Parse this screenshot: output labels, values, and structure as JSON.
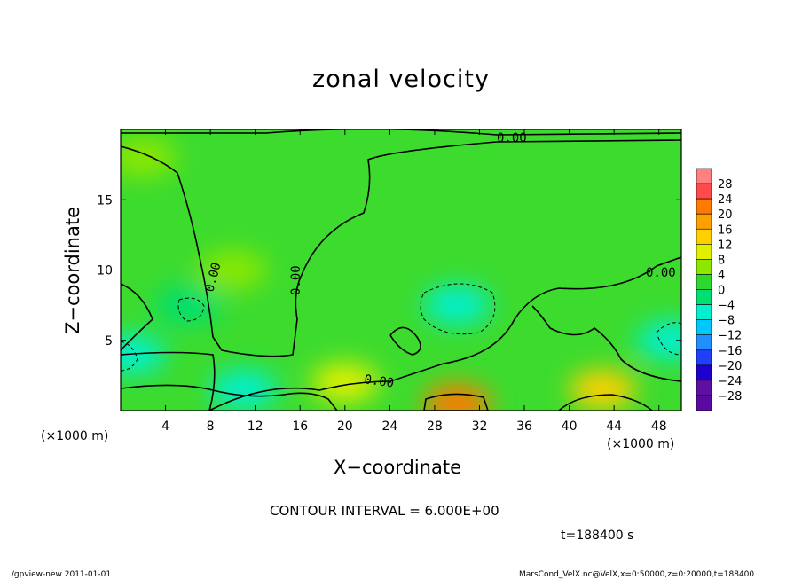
{
  "chart_data": {
    "type": "heatmap",
    "title": "zonal velocity",
    "xlabel": "X−coordinate",
    "ylabel": "Z−coordinate",
    "x_unit": "(×1000 m)",
    "xlim": [
      0,
      50
    ],
    "ylim": [
      0,
      20
    ],
    "x_ticks": [
      "4",
      "8",
      "12",
      "16",
      "20",
      "24",
      "28",
      "32",
      "36",
      "40",
      "44",
      "48"
    ],
    "y_ticks": [
      "5",
      "10",
      "15"
    ],
    "colorbar": {
      "levels": [
        "28",
        "24",
        "20",
        "16",
        "12",
        "8",
        "4",
        "0",
        "−4",
        "−8",
        "−12",
        "−16",
        "−20",
        "−24",
        "−28"
      ],
      "colors": [
        "#ff8080",
        "#ff4a4a",
        "#ff7a00",
        "#ffa000",
        "#ffd000",
        "#e0f000",
        "#8ce800",
        "#2fd82f",
        "#00e070",
        "#00f0d0",
        "#00c8ff",
        "#2090ff",
        "#2040ff",
        "#2000d0",
        "#6010a0"
      ]
    },
    "contour_labels": [
      "0.00",
      "0.00",
      "0.00",
      "0.00",
      "0.00"
    ],
    "contour_interval": "CONTOUR INTERVAL = 6.000E+00",
    "time": "t=188400 s",
    "field_samples": [
      {
        "x": 2,
        "z": 18,
        "u": 2
      },
      {
        "x": 10,
        "z": 10,
        "u": 5
      },
      {
        "x": 30,
        "z": 7.5,
        "u": -9
      },
      {
        "x": 6,
        "z": 7.5,
        "u": -6
      },
      {
        "x": 49,
        "z": 5,
        "u": -9
      },
      {
        "x": 1,
        "z": 4,
        "u": -10
      },
      {
        "x": 11,
        "z": 1.5,
        "u": -9
      },
      {
        "x": 30,
        "z": 0.5,
        "u": 18
      },
      {
        "x": 20,
        "z": 2,
        "u": 8
      },
      {
        "x": 43,
        "z": 1.5,
        "u": 10
      }
    ]
  },
  "footer": {
    "left": "./gpview-new   2011-01-01",
    "right": "MarsCond_VelX.nc@VelX,x=0:50000,z=0:20000,t=188400"
  }
}
